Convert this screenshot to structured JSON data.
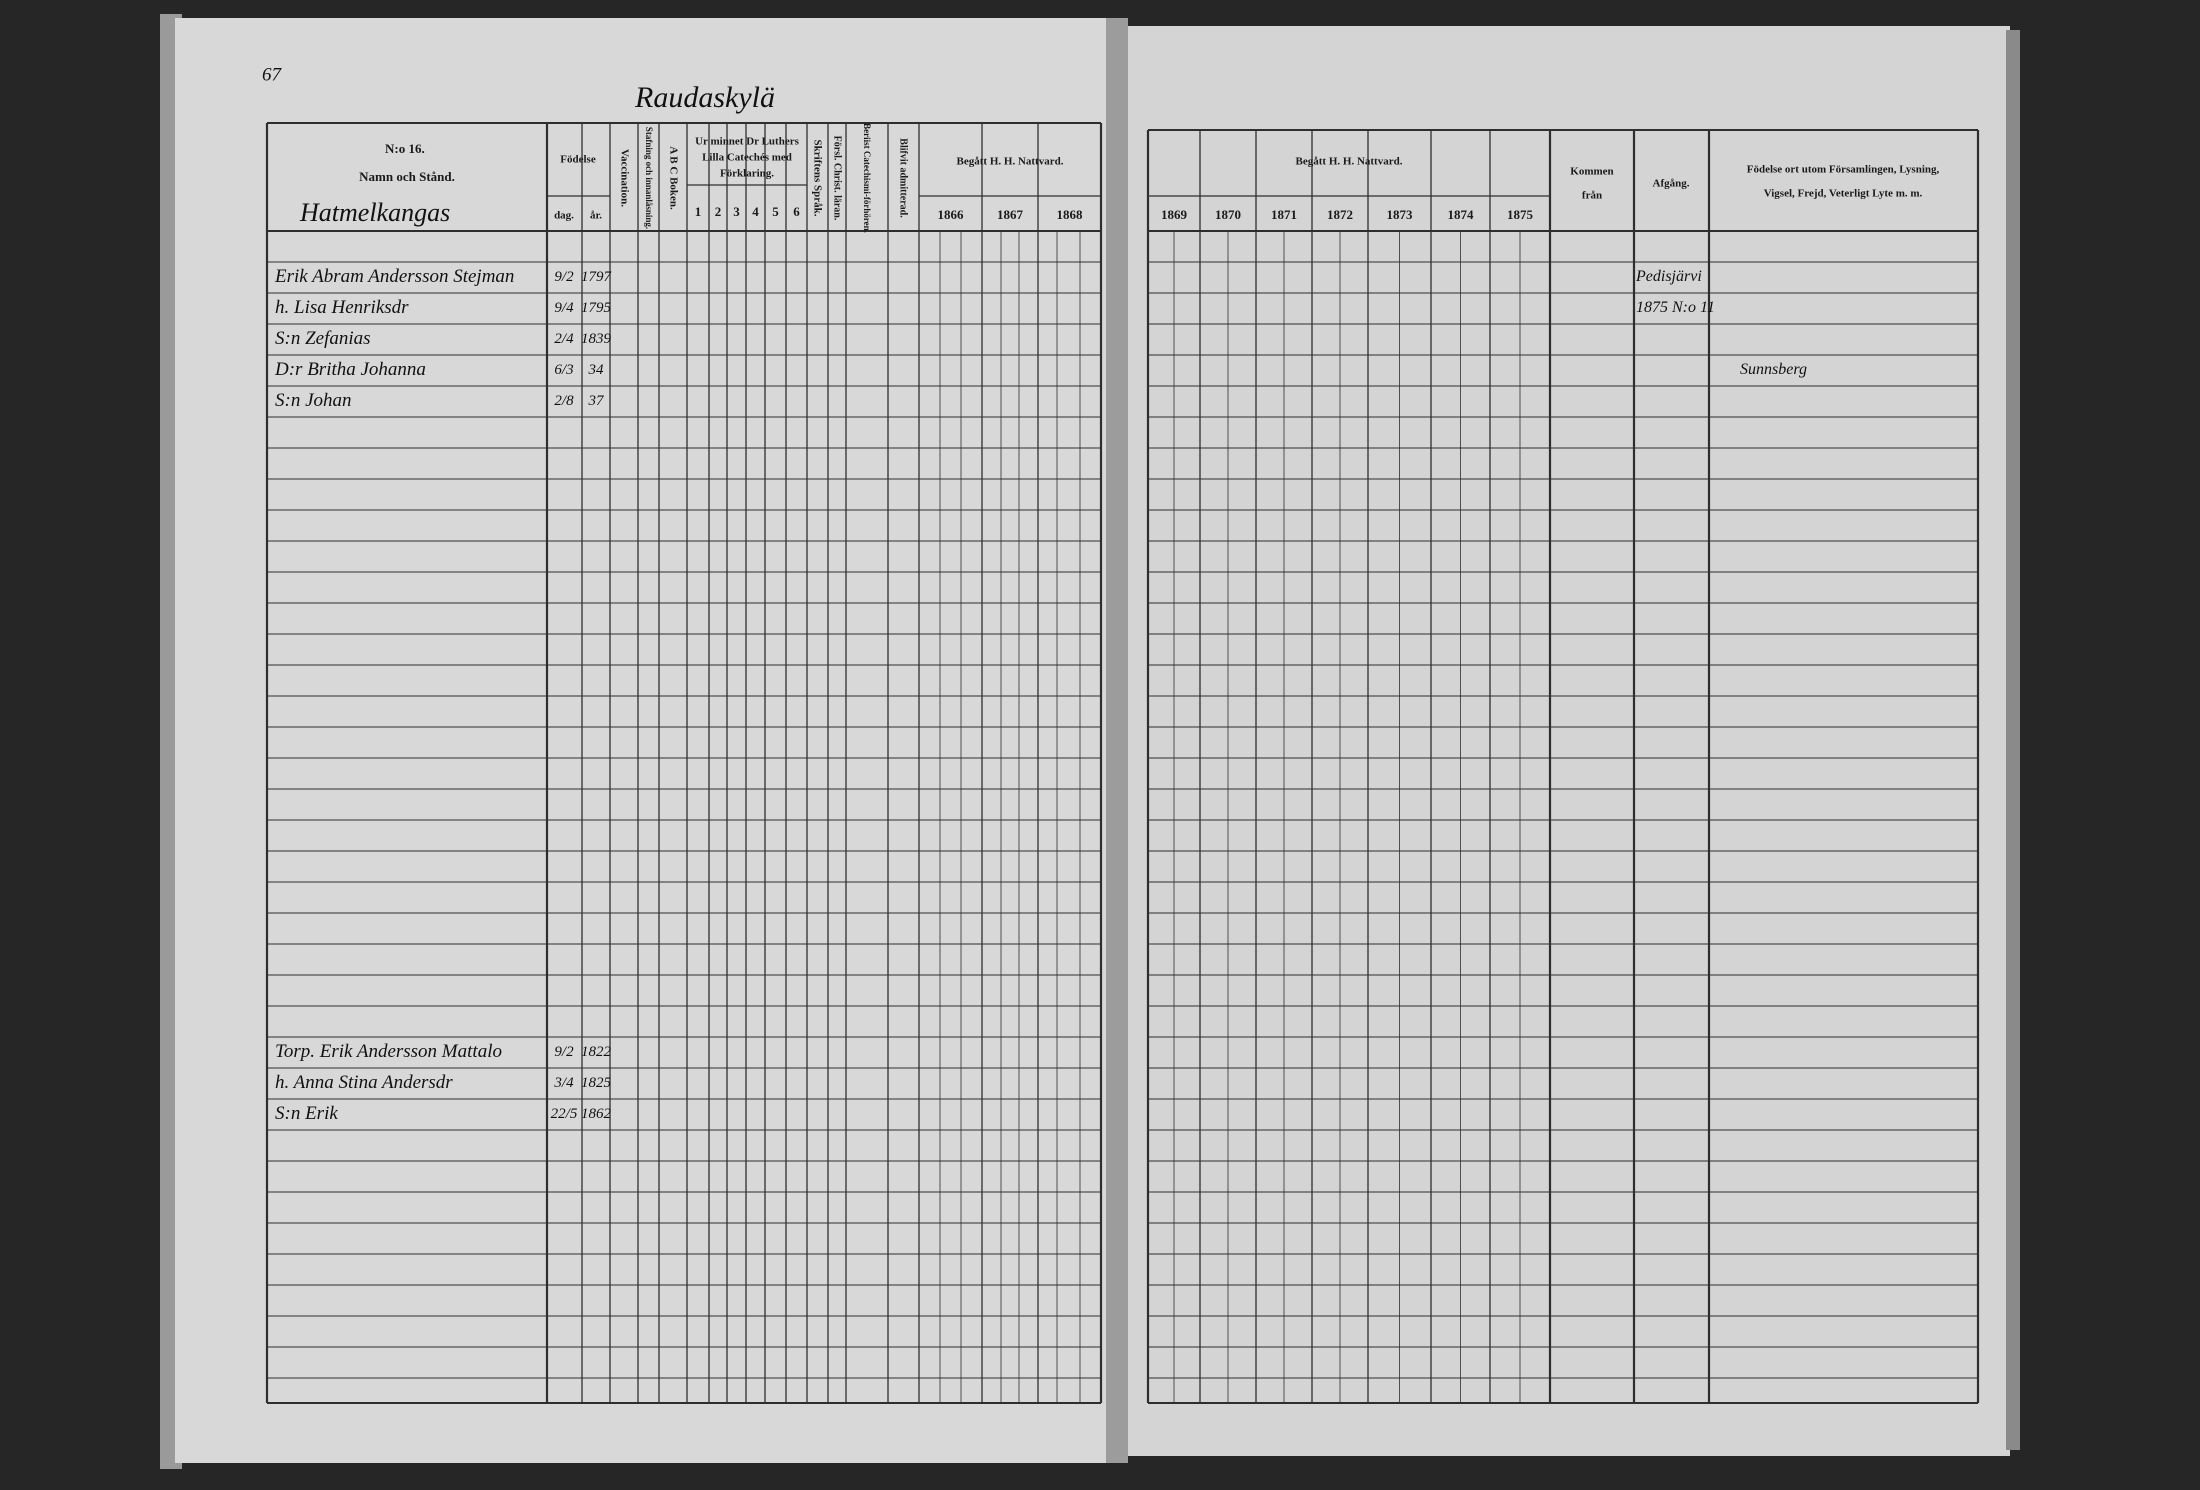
{
  "page_number": "67",
  "village": "Raudaskylä",
  "left_header": {
    "number": "N:o 16.",
    "name_column": "Namn och Stånd.",
    "farm": "Hatmelkangas",
    "birth": "Födelse",
    "day": "dag.",
    "year": "år.",
    "vaccination": "Vaccination.",
    "reading": "Stafning och innanläsning.",
    "abc": "A B C Boken.",
    "catechism": [
      "Ur minnet Dr Luthers",
      "Lilla Catechés med",
      "Förklaring."
    ],
    "catechism_parts": [
      "1",
      "2",
      "3",
      "4",
      "5",
      "6"
    ],
    "scripture": "Skriftens Språk.",
    "christian": "Försl. Christ. läran.",
    "examined": "Beriist Catechismi-förhören.",
    "admitted": "Blifvit admitterad.",
    "communion": "Begått H. H. Nattvard.",
    "years": [
      "1866",
      "1867",
      "1868"
    ]
  },
  "right_header": {
    "communion": "Begått H. H. Nattvard.",
    "years": [
      "1869",
      "1870",
      "1871",
      "1872",
      "1873",
      "1874",
      "1875"
    ],
    "arrived": [
      "Kommen",
      "från"
    ],
    "departure": "Afgång.",
    "remarks": [
      "Födelse ort utom Församlingen, Lysning,",
      "Vigsel, Frejd, Veterligt Lyte m. m."
    ]
  },
  "household_1": {
    "entries": [
      {
        "name": "Erik Abram Andersson Stejman",
        "day": "9/2",
        "year": "1797"
      },
      {
        "name": "h. Lisa Henriksdr",
        "day": "9/4",
        "year": "1795"
      },
      {
        "name": "S:n Zefanias",
        "day": "2/4",
        "year": "1839"
      },
      {
        "name": "D:r Britha Johanna",
        "day": "6/3",
        "year": "34"
      },
      {
        "name": "S:n Johan",
        "day": "2/8",
        "year": "37"
      }
    ],
    "notes": [
      "Pedisjärvi",
      "1875 N:o 11",
      "Sunnsberg"
    ]
  },
  "household_2": {
    "entries": [
      {
        "name": "Torp. Erik Andersson Mattalo",
        "day": "9/2",
        "year": "1822"
      },
      {
        "name": "h. Anna Stina Andersdr",
        "day": "3/4",
        "year": "1825"
      },
      {
        "name": "S:n Erik",
        "day": "22/5",
        "year": "1862"
      }
    ]
  }
}
